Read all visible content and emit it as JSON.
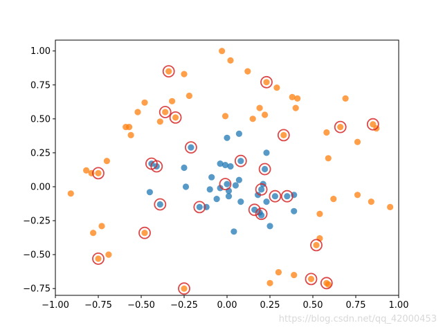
{
  "chart_data": {
    "type": "scatter",
    "xlim": [
      -1.0,
      1.0
    ],
    "ylim": [
      -0.8,
      1.08
    ],
    "x_ticks": [
      -1.0,
      -0.75,
      -0.5,
      -0.25,
      0.0,
      0.25,
      0.5,
      0.75,
      1.0
    ],
    "x_tick_labels": [
      "−1.00",
      "−0.75",
      "−0.50",
      "−0.25",
      "0.00",
      "0.25",
      "0.50",
      "0.75",
      "1.00"
    ],
    "y_ticks": [
      -0.75,
      -0.5,
      -0.25,
      0.0,
      0.25,
      0.5,
      0.75,
      1.0
    ],
    "y_tick_labels": [
      "−0.75",
      "−0.50",
      "−0.25",
      "0.00",
      "0.25",
      "0.50",
      "0.75",
      "1.00"
    ],
    "grid": false,
    "colors": {
      "blue": "#1f77b4",
      "orange": "#ff7f0e",
      "circle": "#d62728"
    },
    "series": [
      {
        "color": "#1f77b4",
        "points": [
          [
            0.0,
            0.36
          ],
          [
            0.07,
            0.39
          ],
          [
            -0.21,
            0.29
          ],
          [
            0.08,
            0.19
          ],
          [
            -0.04,
            0.17
          ],
          [
            -0.01,
            0.16
          ],
          [
            0.02,
            0.15
          ],
          [
            -0.41,
            0.15
          ],
          [
            -0.25,
            0.14
          ],
          [
            0.22,
            0.13
          ],
          [
            -0.44,
            0.17
          ],
          [
            0.23,
            0.25
          ],
          [
            -0.09,
            0.07
          ],
          [
            0.07,
            0.05
          ],
          [
            0.0,
            0.02
          ],
          [
            0.05,
            0.01
          ],
          [
            0.21,
            0.02
          ],
          [
            -0.24,
            0.0
          ],
          [
            0.2,
            -0.02
          ],
          [
            0.18,
            -0.06
          ],
          [
            0.01,
            -0.03
          ],
          [
            -0.04,
            -0.01
          ],
          [
            -0.1,
            -0.02
          ],
          [
            0.28,
            -0.07
          ],
          [
            0.35,
            -0.07
          ],
          [
            0.39,
            -0.06
          ],
          [
            -0.45,
            -0.04
          ],
          [
            0.01,
            -0.07
          ],
          [
            -0.06,
            -0.09
          ],
          [
            0.08,
            -0.11
          ],
          [
            0.23,
            -0.11
          ],
          [
            -0.39,
            -0.13
          ],
          [
            -0.16,
            -0.15
          ],
          [
            -0.12,
            -0.15
          ],
          [
            0.16,
            -0.17
          ],
          [
            0.19,
            -0.19
          ],
          [
            0.2,
            -0.21
          ],
          [
            0.39,
            -0.18
          ],
          [
            0.25,
            -0.29
          ],
          [
            0.04,
            -0.33
          ]
        ]
      },
      {
        "color": "#ff7f0e",
        "points": [
          [
            -0.03,
            1.0
          ],
          [
            0.02,
            0.93
          ],
          [
            -0.34,
            0.85
          ],
          [
            0.12,
            0.85
          ],
          [
            -0.25,
            0.83
          ],
          [
            0.23,
            0.77
          ],
          [
            0.29,
            0.73
          ],
          [
            -0.22,
            0.67
          ],
          [
            0.38,
            0.66
          ],
          [
            0.41,
            0.65
          ],
          [
            0.69,
            0.65
          ],
          [
            -0.48,
            0.62
          ],
          [
            -0.32,
            0.63
          ],
          [
            0.19,
            0.58
          ],
          [
            0.4,
            0.58
          ],
          [
            -0.52,
            0.55
          ],
          [
            -0.36,
            0.55
          ],
          [
            -0.3,
            0.51
          ],
          [
            -0.01,
            0.52
          ],
          [
            0.22,
            0.53
          ],
          [
            0.15,
            0.5
          ],
          [
            -0.39,
            0.48
          ],
          [
            -0.59,
            0.44
          ],
          [
            -0.57,
            0.44
          ],
          [
            0.66,
            0.44
          ],
          [
            0.85,
            0.46
          ],
          [
            0.87,
            0.43
          ],
          [
            -0.56,
            0.38
          ],
          [
            0.33,
            0.38
          ],
          [
            0.58,
            0.4
          ],
          [
            0.76,
            0.33
          ],
          [
            0.59,
            0.21
          ],
          [
            -0.7,
            0.19
          ],
          [
            -0.82,
            0.12
          ],
          [
            -0.75,
            0.1
          ],
          [
            -0.79,
            0.1
          ],
          [
            -0.91,
            -0.05
          ],
          [
            0.76,
            -0.06
          ],
          [
            0.62,
            -0.09
          ],
          [
            0.84,
            -0.11
          ],
          [
            0.95,
            -0.15
          ],
          [
            0.54,
            -0.2
          ],
          [
            -0.73,
            -0.29
          ],
          [
            -0.78,
            -0.34
          ],
          [
            -0.48,
            -0.34
          ],
          [
            0.54,
            -0.38
          ],
          [
            0.52,
            -0.43
          ],
          [
            -0.69,
            -0.5
          ],
          [
            -0.75,
            -0.53
          ],
          [
            0.3,
            -0.63
          ],
          [
            0.39,
            -0.65
          ],
          [
            0.49,
            -0.68
          ],
          [
            0.25,
            -0.71
          ],
          [
            0.58,
            -0.71
          ],
          [
            0.59,
            -0.72
          ],
          [
            -0.25,
            -0.75
          ]
        ]
      }
    ],
    "circled_points": [
      [
        -0.34,
        0.85
      ],
      [
        0.23,
        0.77
      ],
      [
        -0.36,
        0.55
      ],
      [
        -0.3,
        0.51
      ],
      [
        0.66,
        0.44
      ],
      [
        0.85,
        0.46
      ],
      [
        0.33,
        0.38
      ],
      [
        -0.21,
        0.29
      ],
      [
        0.08,
        0.19
      ],
      [
        -0.44,
        0.17
      ],
      [
        -0.41,
        0.15
      ],
      [
        0.22,
        0.13
      ],
      [
        -0.75,
        0.1
      ],
      [
        -0.01,
        0.02
      ],
      [
        0.2,
        -0.02
      ],
      [
        0.28,
        -0.07
      ],
      [
        0.35,
        -0.07
      ],
      [
        -0.39,
        -0.13
      ],
      [
        -0.16,
        -0.15
      ],
      [
        0.16,
        -0.17
      ],
      [
        0.2,
        -0.2
      ],
      [
        -0.48,
        -0.34
      ],
      [
        0.52,
        -0.43
      ],
      [
        -0.75,
        -0.53
      ],
      [
        0.49,
        -0.68
      ],
      [
        0.58,
        -0.71
      ],
      [
        -0.25,
        -0.75
      ]
    ]
  },
  "watermark": "https://blog.csdn.net/qq_42000453"
}
